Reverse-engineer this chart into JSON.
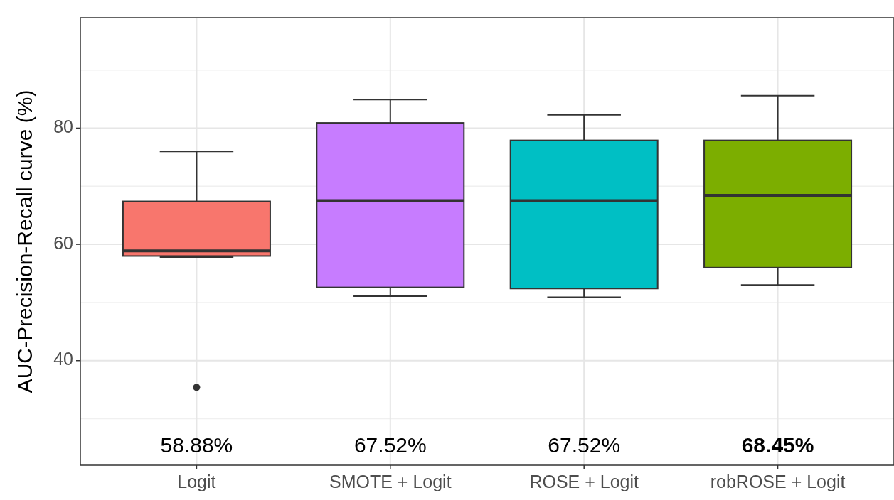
{
  "chart_data": {
    "type": "box",
    "ylabel": "AUC-Precision-Recall curve (%)",
    "categories": [
      "Logit",
      "SMOTE + Logit",
      "ROSE + Logit",
      "robROSE + Logit"
    ],
    "colors": [
      "#f8766d",
      "#c77cff",
      "#00bfc4",
      "#7cae00"
    ],
    "boxes": [
      {
        "low": 57.8,
        "q1": 58.0,
        "median": 58.88,
        "q3": 67.4,
        "high": 76.0,
        "outliers": [
          35.4
        ]
      },
      {
        "low": 51.1,
        "q1": 52.6,
        "median": 67.52,
        "q3": 80.9,
        "high": 84.9
      },
      {
        "low": 50.9,
        "q1": 52.4,
        "median": 67.52,
        "q3": 77.9,
        "high": 82.3
      },
      {
        "low": 53.0,
        "q1": 56.0,
        "median": 68.45,
        "q3": 77.9,
        "high": 85.6
      }
    ],
    "annotations": [
      "58.88%",
      "67.52%",
      "67.52%",
      "68.45%"
    ],
    "ylim": [
      22,
      99
    ],
    "yticks": [
      40,
      60,
      80
    ],
    "grid": true
  }
}
